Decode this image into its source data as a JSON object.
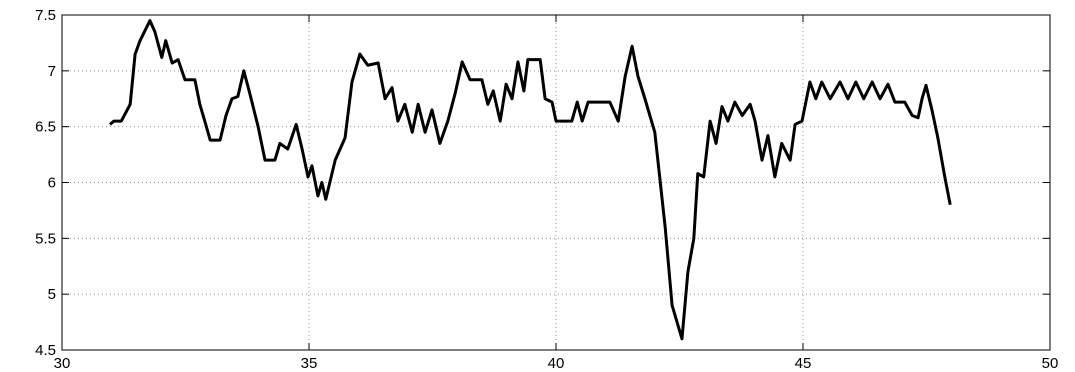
{
  "chart_data": {
    "type": "line",
    "x": [
      30.97,
      31.05,
      31.2,
      31.38,
      31.48,
      31.58,
      31.78,
      31.88,
      32.02,
      32.1,
      32.23,
      32.35,
      32.49,
      32.69,
      32.79,
      32.89,
      33.0,
      33.2,
      33.32,
      33.44,
      33.56,
      33.68,
      33.8,
      33.97,
      34.11,
      34.31,
      34.41,
      34.57,
      34.74,
      34.86,
      34.98,
      35.06,
      35.18,
      35.26,
      35.34,
      35.53,
      35.73,
      35.87,
      36.03,
      36.19,
      36.4,
      36.54,
      36.68,
      36.8,
      36.94,
      37.09,
      37.21,
      37.35,
      37.49,
      37.65,
      37.81,
      37.96,
      38.1,
      38.26,
      38.5,
      38.62,
      38.73,
      38.87,
      38.99,
      39.11,
      39.23,
      39.35,
      39.43,
      39.68,
      39.78,
      39.92,
      40.0,
      40.32,
      40.43,
      40.53,
      40.65,
      40.89,
      41.09,
      41.26,
      41.4,
      41.54,
      41.66,
      41.8,
      42.0,
      42.21,
      42.35,
      42.45,
      42.55,
      42.67,
      42.79,
      42.87,
      42.99,
      43.12,
      43.24,
      43.36,
      43.48,
      43.62,
      43.77,
      43.93,
      44.03,
      44.17,
      44.29,
      44.43,
      44.57,
      44.74,
      44.84,
      44.98,
      45.14,
      45.26,
      45.38,
      45.55,
      45.75,
      45.91,
      46.07,
      46.23,
      46.4,
      46.56,
      46.72,
      46.86,
      47.06,
      47.21,
      47.33,
      47.41,
      47.49,
      47.61,
      47.73,
      47.87,
      47.98
    ],
    "series": [
      {
        "color": "#000000",
        "values": [
          6.52,
          6.55,
          6.55,
          6.7,
          7.15,
          7.27,
          7.45,
          7.35,
          7.12,
          7.27,
          7.07,
          7.1,
          6.92,
          6.92,
          6.7,
          6.55,
          6.38,
          6.38,
          6.6,
          6.75,
          6.77,
          7.0,
          6.8,
          6.5,
          6.2,
          6.2,
          6.35,
          6.3,
          6.52,
          6.3,
          6.05,
          6.15,
          5.88,
          6.0,
          5.85,
          6.2,
          6.4,
          6.9,
          7.15,
          7.05,
          7.07,
          6.75,
          6.85,
          6.55,
          6.7,
          6.45,
          6.7,
          6.45,
          6.65,
          6.35,
          6.55,
          6.8,
          7.08,
          6.92,
          6.92,
          6.7,
          6.82,
          6.55,
          6.88,
          6.75,
          7.08,
          6.82,
          7.1,
          7.1,
          6.75,
          6.72,
          6.55,
          6.55,
          6.72,
          6.55,
          6.72,
          6.72,
          6.72,
          6.55,
          6.95,
          7.22,
          6.95,
          6.75,
          6.45,
          5.6,
          4.9,
          4.75,
          4.6,
          5.2,
          5.5,
          6.08,
          6.05,
          6.55,
          6.35,
          6.68,
          6.55,
          6.72,
          6.6,
          6.7,
          6.55,
          6.2,
          6.42,
          6.05,
          6.35,
          6.2,
          6.52,
          6.55,
          6.9,
          6.75,
          6.9,
          6.75,
          6.9,
          6.75,
          6.9,
          6.75,
          6.9,
          6.75,
          6.88,
          6.72,
          6.72,
          6.6,
          6.58,
          6.75,
          6.87,
          6.65,
          6.4,
          6.05,
          5.8
        ]
      }
    ],
    "xlim": [
      30,
      50
    ],
    "xticks": [
      30,
      35,
      40,
      45,
      50
    ],
    "ylim": [
      4.5,
      7.5
    ],
    "yticks": [
      4.5,
      5,
      5.5,
      6,
      6.5,
      7,
      7.5
    ],
    "grid": true
  }
}
